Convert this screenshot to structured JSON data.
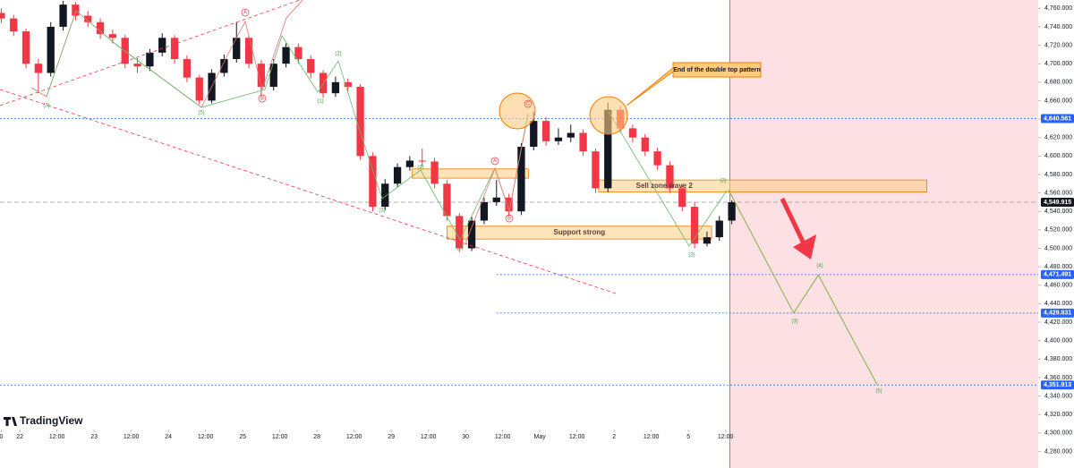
{
  "chart_data": {
    "type": "candlestick",
    "x": [
      -6,
      -2,
      2,
      6,
      10,
      14,
      18,
      22,
      26,
      30,
      34,
      38,
      42,
      46,
      50,
      54,
      58,
      62,
      66,
      70,
      74,
      78,
      82,
      86,
      90,
      94,
      98,
      102,
      106,
      110,
      114,
      118,
      122,
      126,
      130,
      134,
      138,
      142,
      146,
      150,
      154,
      158,
      162,
      166,
      170,
      174,
      178,
      182,
      186,
      190,
      194,
      198,
      202,
      206,
      210,
      214,
      218,
      222,
      226,
      230
    ],
    "open": [
      4755,
      4749,
      4735,
      4700,
      4690,
      4740,
      4764,
      4752,
      4745,
      4732,
      4728,
      4700,
      4697,
      4712,
      4728,
      4705,
      4685,
      4660,
      4690,
      4705,
      4728,
      4700,
      4675,
      4700,
      4718,
      4705,
      4690,
      4668,
      4680,
      4675,
      4600,
      4545,
      4570,
      4588,
      4595,
      4594,
      4570,
      4535,
      4500,
      4530,
      4550,
      4555,
      4540,
      4610,
      4638,
      4616,
      4620,
      4625,
      4605,
      4565,
      4650,
      4630,
      4620,
      4605,
      4590,
      4565,
      4545,
      4505,
      4512,
      4530
    ],
    "high": [
      4760,
      4753,
      4738,
      4705,
      4745,
      4768,
      4767,
      4757,
      4749,
      4737,
      4731,
      4706,
      4716,
      4733,
      4731,
      4709,
      4688,
      4694,
      4710,
      4745,
      4731,
      4704,
      4705,
      4722,
      4722,
      4709,
      4693,
      4686,
      4684,
      4678,
      4604,
      4575,
      4592,
      4600,
      4608,
      4598,
      4574,
      4538,
      4534,
      4555,
      4574,
      4559,
      4614,
      4648,
      4642,
      4630,
      4634,
      4629,
      4608,
      4658,
      4654,
      4634,
      4624,
      4609,
      4594,
      4569,
      4550,
      4518,
      4535,
      4552
    ],
    "low": [
      4744,
      4730,
      4695,
      4668,
      4686,
      4736,
      4747,
      4740,
      4727,
      4722,
      4695,
      4690,
      4692,
      4708,
      4700,
      4680,
      4656,
      4657,
      4686,
      4701,
      4695,
      4665,
      4671,
      4696,
      4700,
      4684,
      4663,
      4664,
      4670,
      4596,
      4540,
      4541,
      4566,
      4584,
      4589,
      4565,
      4530,
      4496,
      4497,
      4526,
      4546,
      4535,
      4536,
      4606,
      4611,
      4612,
      4615,
      4600,
      4560,
      4561,
      4625,
      4615,
      4600,
      4585,
      4560,
      4540,
      4500,
      4502,
      4508,
      4526
    ],
    "close": [
      4749,
      4735,
      4700,
      4690,
      4740,
      4764,
      4752,
      4745,
      4732,
      4728,
      4700,
      4697,
      4712,
      4728,
      4705,
      4685,
      4660,
      4690,
      4705,
      4728,
      4700,
      4675,
      4700,
      4718,
      4705,
      4690,
      4668,
      4680,
      4675,
      4600,
      4545,
      4570,
      4588,
      4595,
      4594,
      4570,
      4535,
      4500,
      4530,
      4550,
      4555,
      4540,
      4610,
      4638,
      4616,
      4620,
      4625,
      4605,
      4565,
      4650,
      4630,
      4620,
      4605,
      4590,
      4565,
      4545,
      4505,
      4512,
      4530,
      4549.915
    ],
    "up_color": "#131722",
    "down_color": "#f23645",
    "xlim": [
      -6.4,
      329
    ],
    "xticks": [
      {
        "value": -6,
        "label": "0"
      },
      {
        "value": 0,
        "label": "22"
      },
      {
        "value": 12,
        "label": "12:00"
      },
      {
        "value": 24,
        "label": "23"
      },
      {
        "value": 36,
        "label": "12:00"
      },
      {
        "value": 48,
        "label": "24"
      },
      {
        "value": 60,
        "label": "12:00"
      },
      {
        "value": 72,
        "label": "25"
      },
      {
        "value": 84,
        "label": "12:00"
      },
      {
        "value": 96,
        "label": "28"
      },
      {
        "value": 108,
        "label": "12:00"
      },
      {
        "value": 120,
        "label": "29"
      },
      {
        "value": 132,
        "label": "12:00"
      },
      {
        "value": 144,
        "label": "30"
      },
      {
        "value": 156,
        "label": "12:00"
      },
      {
        "value": 168,
        "label": "May"
      },
      {
        "value": 180,
        "label": "12:00"
      },
      {
        "value": 192,
        "label": "2"
      },
      {
        "value": 204,
        "label": "12:00"
      },
      {
        "value": 216,
        "label": "5"
      },
      {
        "value": 228,
        "label": "12:00"
      }
    ],
    "ylim": [
      4262,
      4769
    ],
    "yticks": [
      {
        "value": 4280,
        "label": "4,280.000"
      },
      {
        "value": 4300,
        "label": "4,300.000"
      },
      {
        "value": 4320,
        "label": "4,320.000"
      },
      {
        "value": 4340,
        "label": "4,340.000"
      },
      {
        "value": 4360,
        "label": "4,360.000"
      },
      {
        "value": 4380,
        "label": "4,380.000"
      },
      {
        "value": 4400,
        "label": "4,400.000"
      },
      {
        "value": 4420,
        "label": "4,420.000"
      },
      {
        "value": 4440,
        "label": "4,440.000"
      },
      {
        "value": 4460,
        "label": "4,460.000"
      },
      {
        "value": 4480,
        "label": "4,480.000"
      },
      {
        "value": 4500,
        "label": "4,500.000"
      },
      {
        "value": 4520,
        "label": "4,520.000"
      },
      {
        "value": 4540,
        "label": "4,540.000"
      },
      {
        "value": 4560,
        "label": "4,560.000"
      },
      {
        "value": 4580,
        "label": "4,580.000"
      },
      {
        "value": 4600,
        "label": "4,600.000"
      },
      {
        "value": 4620,
        "label": "4,620.000"
      },
      {
        "value": 4640,
        "label": "4,640.000"
      },
      {
        "value": 4660,
        "label": "4,660.000"
      },
      {
        "value": 4680,
        "label": "4,680.000"
      },
      {
        "value": 4700,
        "label": "4,700.000"
      },
      {
        "value": 4720,
        "label": "4,720.000"
      },
      {
        "value": 4740,
        "label": "4,740.000"
      },
      {
        "value": 4760,
        "label": "4,760.000"
      }
    ],
    "price_levels": [
      {
        "value": 4640.561,
        "label": "4,640.561",
        "color": "#2962ff"
      },
      {
        "value": 4549.915,
        "label": "4,549.915",
        "color": "#131722"
      },
      {
        "value": 4471.491,
        "label": "4,471.491",
        "color": "#2962ff",
        "x_start": 154
      },
      {
        "value": 4429.831,
        "label": "4,429.831",
        "color": "#2962ff",
        "x_start": 154
      },
      {
        "value": 4351.913,
        "label": "4,351.913",
        "color": "#2962ff"
      }
    ],
    "zones": [
      {
        "label": "Sell zone wave 2",
        "x": [
          187,
          293
        ],
        "y": [
          4561,
          4574
        ]
      },
      {
        "label": "Support strong",
        "x": [
          138,
          223.5
        ],
        "y": [
          4510,
          4524
        ]
      },
      {
        "x": [
          126.7,
          164.3
        ],
        "y": [
          4576,
          4586
        ]
      }
    ],
    "zone_color": "#ffcc80",
    "forecast": {
      "x": [
        229,
        250,
        258,
        277
      ],
      "values": [
        4563,
        4430,
        4471,
        4352
      ],
      "color": "#7cb342"
    },
    "forecast_zone_color": "#fde0e3",
    "wave_labels": [
      {
        "text": "(3)",
        "color": "#43a047"
      },
      {
        "text": "(5)",
        "color": "#43a047"
      },
      {
        "text": "A",
        "color": "#f23645"
      },
      {
        "text": "B",
        "color": "#f23645"
      },
      {
        "text": "(2)",
        "color": "#43a047"
      },
      {
        "text": "(1)",
        "color": "#43a047"
      },
      {
        "text": "(3)",
        "color": "#43a047"
      },
      {
        "text": "(4)",
        "color": "#43a047"
      },
      {
        "text": "A",
        "color": "#f23645"
      },
      {
        "text": "B",
        "color": "#f23645"
      },
      {
        "text": "C",
        "color": "#f23645"
      },
      {
        "text": "(5)",
        "color": "#43a047"
      },
      {
        "text": "(3)",
        "color": "#43a047"
      },
      {
        "text": "(2)",
        "color": "#43a047"
      },
      {
        "text": "(4)",
        "color": "#43a047"
      },
      {
        "text": "(3)",
        "color": "#43a047"
      },
      {
        "text": "(5)",
        "color": "#43a047"
      }
    ],
    "annotation": "End of the double top pattern",
    "brand": "TradingView"
  }
}
